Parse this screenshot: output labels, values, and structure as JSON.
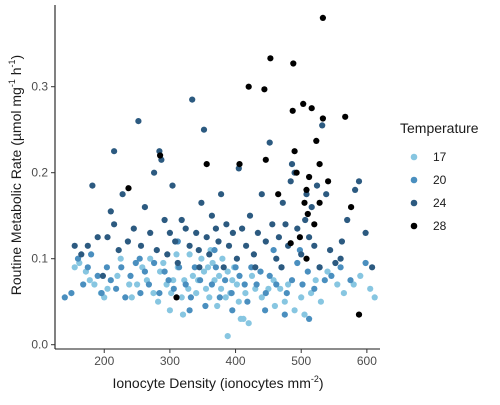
{
  "chart_data": {
    "type": "scatter",
    "title": "",
    "xlabel": {
      "main": "Ionocyte Density (ionocytes mm",
      "sup": "-2",
      "end": ")"
    },
    "ylabel": {
      "main": "Routine Metabolic Rate (µmol mg",
      "sup1": "-1",
      "mid": " h",
      "sup2": "-1",
      "end": ")"
    },
    "xlim": [
      125,
      620
    ],
    "ylim": [
      -0.005,
      0.395
    ],
    "x_ticks": [
      200,
      300,
      400,
      500,
      600
    ],
    "y_ticks": [
      0.0,
      0.1,
      0.2,
      0.3
    ],
    "y_tick_labels": [
      "0.0",
      "0.1",
      "0.2",
      "0.3"
    ],
    "grid": false,
    "legend": {
      "title": "Temperature",
      "position": "right"
    },
    "series": [
      {
        "name": "17",
        "color": "#87c6e1",
        "points": [
          [
            155,
            0.09
          ],
          [
            162,
            0.095
          ],
          [
            172,
            0.085
          ],
          [
            178,
            0.075
          ],
          [
            185,
            0.07
          ],
          [
            195,
            0.06
          ],
          [
            200,
            0.055
          ],
          [
            205,
            0.065
          ],
          [
            220,
            0.08
          ],
          [
            225,
            0.1
          ],
          [
            238,
            0.07
          ],
          [
            242,
            0.055
          ],
          [
            250,
            0.07
          ],
          [
            258,
            0.09
          ],
          [
            265,
            0.075
          ],
          [
            270,
            0.1
          ],
          [
            275,
            0.06
          ],
          [
            282,
            0.05
          ],
          [
            285,
            0.085
          ],
          [
            290,
            0.095
          ],
          [
            295,
            0.07
          ],
          [
            300,
            0.04
          ],
          [
            302,
            0.06
          ],
          [
            305,
            0.075
          ],
          [
            310,
            0.105
          ],
          [
            312,
            0.09
          ],
          [
            318,
            0.055
          ],
          [
            320,
            0.035
          ],
          [
            322,
            0.075
          ],
          [
            328,
            0.065
          ],
          [
            330,
            0.105
          ],
          [
            335,
            0.08
          ],
          [
            340,
            0.06
          ],
          [
            343,
            0.075
          ],
          [
            348,
            0.1
          ],
          [
            352,
            0.085
          ],
          [
            355,
            0.065
          ],
          [
            358,
            0.09
          ],
          [
            360,
            0.055
          ],
          [
            362,
            0.11
          ],
          [
            365,
            0.095
          ],
          [
            368,
            0.075
          ],
          [
            372,
            0.045
          ],
          [
            375,
            0.08
          ],
          [
            378,
            0.065
          ],
          [
            380,
            0.1
          ],
          [
            385,
            0.055
          ],
          [
            388,
            0.085
          ],
          [
            392,
            0.06
          ],
          [
            395,
            0.075
          ],
          [
            398,
            0.09
          ],
          [
            402,
            0.07
          ],
          [
            405,
            0.05
          ],
          [
            408,
            0.03
          ],
          [
            412,
            0.03
          ],
          [
            415,
            0.06
          ],
          [
            420,
            0.025
          ],
          [
            425,
            0.08
          ],
          [
            430,
            0.065
          ],
          [
            440,
            0.055
          ],
          [
            450,
            0.065
          ],
          [
            458,
            0.075
          ],
          [
            460,
            0.045
          ],
          [
            468,
            0.065
          ],
          [
            475,
            0.05
          ],
          [
            480,
            0.07
          ],
          [
            490,
            0.04
          ],
          [
            500,
            0.055
          ],
          [
            505,
            0.035
          ],
          [
            515,
            0.06
          ],
          [
            522,
            0.075
          ],
          [
            530,
            0.05
          ],
          [
            540,
            0.085
          ],
          [
            555,
            0.07
          ],
          [
            565,
            0.06
          ],
          [
            580,
            0.07
          ],
          [
            590,
            0.08
          ],
          [
            605,
            0.065
          ],
          [
            612,
            0.055
          ],
          [
            388,
            0.01
          ]
        ]
      },
      {
        "name": "20",
        "color": "#4a8fbf",
        "points": [
          [
            140,
            0.055
          ],
          [
            150,
            0.06
          ],
          [
            160,
            0.1
          ],
          [
            168,
            0.07
          ],
          [
            175,
            0.09
          ],
          [
            180,
            0.105
          ],
          [
            190,
            0.08
          ],
          [
            196,
            0.06
          ],
          [
            204,
            0.09
          ],
          [
            210,
            0.075
          ],
          [
            218,
            0.065
          ],
          [
            226,
            0.09
          ],
          [
            232,
            0.055
          ],
          [
            240,
            0.08
          ],
          [
            248,
            0.095
          ],
          [
            255,
            0.06
          ],
          [
            262,
            0.085
          ],
          [
            268,
            0.07
          ],
          [
            276,
            0.095
          ],
          [
            284,
            0.06
          ],
          [
            292,
            0.085
          ],
          [
            298,
            0.075
          ],
          [
            306,
            0.065
          ],
          [
            314,
            0.09
          ],
          [
            324,
            0.07
          ],
          [
            332,
            0.055
          ],
          [
            338,
            0.09
          ],
          [
            346,
            0.075
          ],
          [
            354,
            0.045
          ],
          [
            364,
            0.07
          ],
          [
            370,
            0.09
          ],
          [
            376,
            0.055
          ],
          [
            384,
            0.075
          ],
          [
            394,
            0.06
          ],
          [
            400,
            0.09
          ],
          [
            406,
            0.08
          ],
          [
            414,
            0.07
          ],
          [
            418,
            0.05
          ],
          [
            424,
            0.09
          ],
          [
            432,
            0.07
          ],
          [
            438,
            0.085
          ],
          [
            446,
            0.06
          ],
          [
            452,
            0.08
          ],
          [
            462,
            0.07
          ],
          [
            470,
            0.09
          ],
          [
            478,
            0.06
          ],
          [
            486,
            0.075
          ],
          [
            494,
            0.095
          ],
          [
            502,
            0.07
          ],
          [
            510,
            0.085
          ],
          [
            520,
            0.065
          ],
          [
            528,
            0.09
          ],
          [
            536,
            0.075
          ],
          [
            546,
            0.08
          ],
          [
            560,
            0.09
          ],
          [
            575,
            0.075
          ],
          [
            598,
            0.095
          ],
          [
            330,
            0.04
          ],
          [
            395,
            0.04
          ],
          [
            445,
            0.04
          ],
          [
            475,
            0.035
          ],
          [
            512,
            0.03
          ],
          [
            254,
            0.1
          ],
          [
            312,
            0.12
          ],
          [
            368,
            0.11
          ],
          [
            458,
            0.11
          ],
          [
            498,
            0.11
          ]
        ]
      },
      {
        "name": "24",
        "color": "#2c5a80",
        "points": [
          [
            155,
            0.115
          ],
          [
            165,
            0.105
          ],
          [
            175,
            0.115
          ],
          [
            182,
            0.185
          ],
          [
            190,
            0.125
          ],
          [
            198,
            0.08
          ],
          [
            205,
            0.125
          ],
          [
            210,
            0.155
          ],
          [
            215,
            0.225
          ],
          [
            222,
            0.11
          ],
          [
            228,
            0.175
          ],
          [
            236,
            0.12
          ],
          [
            245,
            0.135
          ],
          [
            252,
            0.26
          ],
          [
            256,
            0.115
          ],
          [
            262,
            0.16
          ],
          [
            270,
            0.13
          ],
          [
            276,
            0.2
          ],
          [
            280,
            0.11
          ],
          [
            284,
            0.225
          ],
          [
            287,
            0.215
          ],
          [
            292,
            0.145
          ],
          [
            296,
            0.105
          ],
          [
            300,
            0.13
          ],
          [
            304,
            0.185
          ],
          [
            308,
            0.12
          ],
          [
            312,
            0.095
          ],
          [
            318,
            0.145
          ],
          [
            324,
            0.135
          ],
          [
            330,
            0.115
          ],
          [
            334,
            0.285
          ],
          [
            340,
            0.13
          ],
          [
            344,
            0.11
          ],
          [
            348,
            0.165
          ],
          [
            352,
            0.25
          ],
          [
            356,
            0.125
          ],
          [
            360,
            0.105
          ],
          [
            364,
            0.15
          ],
          [
            370,
            0.135
          ],
          [
            374,
            0.12
          ],
          [
            378,
            0.175
          ],
          [
            382,
            0.09
          ],
          [
            386,
            0.14
          ],
          [
            390,
            0.115
          ],
          [
            396,
            0.13
          ],
          [
            402,
            0.1
          ],
          [
            405,
            0.205
          ],
          [
            410,
            0.135
          ],
          [
            416,
            0.115
          ],
          [
            422,
            0.15
          ],
          [
            428,
            0.105
          ],
          [
            434,
            0.13
          ],
          [
            440,
            0.175
          ],
          [
            446,
            0.12
          ],
          [
            452,
            0.235
          ],
          [
            456,
            0.14
          ],
          [
            462,
            0.1
          ],
          [
            466,
            0.125
          ],
          [
            472,
            0.165
          ],
          [
            476,
            0.14
          ],
          [
            480,
            0.115
          ],
          [
            484,
            0.19
          ],
          [
            486,
            0.21
          ],
          [
            490,
            0.2
          ],
          [
            494,
            0.135
          ],
          [
            500,
            0.105
          ],
          [
            506,
            0.145
          ],
          [
            508,
            0.175
          ],
          [
            512,
            0.125
          ],
          [
            516,
            0.16
          ],
          [
            520,
            0.115
          ],
          [
            524,
            0.185
          ],
          [
            528,
            0.09
          ],
          [
            532,
            0.255
          ],
          [
            538,
            0.175
          ],
          [
            544,
            0.11
          ],
          [
            552,
            0.095
          ],
          [
            562,
            0.12
          ],
          [
            570,
            0.145
          ],
          [
            582,
            0.18
          ],
          [
            588,
            0.19
          ],
          [
            598,
            0.13
          ],
          [
            608,
            0.09
          ],
          [
            215,
            0.14
          ],
          [
            345,
            0.09
          ],
          [
            430,
            0.09
          ],
          [
            470,
            0.09
          ],
          [
            560,
            0.1
          ]
        ]
      },
      {
        "name": "28",
        "color": "#000000",
        "points": [
          [
            533,
            0.38
          ],
          [
            453,
            0.333
          ],
          [
            488,
            0.327
          ],
          [
            420,
            0.3
          ],
          [
            444,
            0.297
          ],
          [
            503,
            0.28
          ],
          [
            487,
            0.272
          ],
          [
            516,
            0.275
          ],
          [
            533,
            0.263
          ],
          [
            567,
            0.265
          ],
          [
            523,
            0.237
          ],
          [
            490,
            0.225
          ],
          [
            528,
            0.21
          ],
          [
            512,
            0.195
          ],
          [
            493,
            0.2
          ],
          [
            541,
            0.19
          ],
          [
            465,
            0.175
          ],
          [
            508,
            0.18
          ],
          [
            446,
            0.215
          ],
          [
            406,
            0.21
          ],
          [
            356,
            0.21
          ],
          [
            285,
            0.22
          ],
          [
            237,
            0.182
          ],
          [
            520,
            0.14
          ],
          [
            528,
            0.165
          ],
          [
            510,
            0.152
          ],
          [
            498,
            0.125
          ],
          [
            484,
            0.118
          ],
          [
            508,
            0.1
          ],
          [
            505,
            0.165
          ],
          [
            576,
            0.16
          ],
          [
            310,
            0.055
          ],
          [
            588,
            0.035
          ]
        ]
      }
    ]
  }
}
